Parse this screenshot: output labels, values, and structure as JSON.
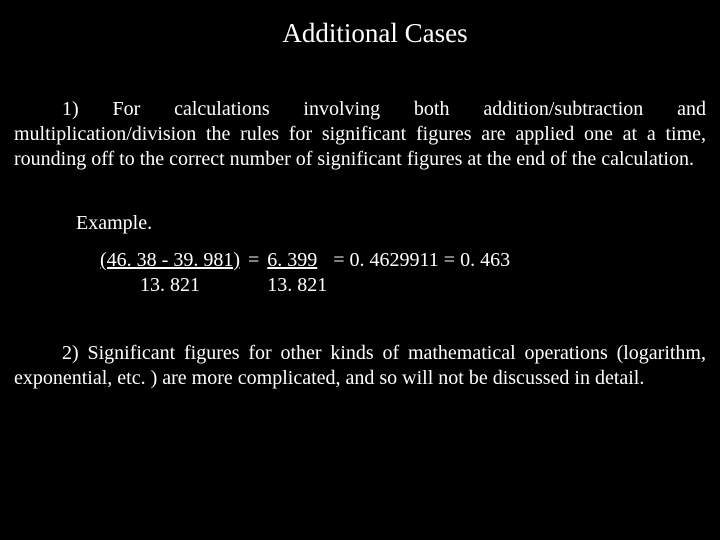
{
  "colors": {
    "background": "#000000",
    "text": "#ffffff"
  },
  "typography": {
    "font_family": "Times New Roman",
    "title_fontsize_pt": 20,
    "body_fontsize_pt": 15
  },
  "title": "Additional Cases",
  "paragraph1": "1) For calculations involving both addition/subtraction and multiplication/division the rules for significant figures are applied one at a time, rounding off to the correct number of significant figures at the end of the calculation.",
  "example_label": "Example.",
  "calculation": {
    "numerator_left": "(46. 38 - 39. 981)",
    "denominator_left": "13. 821",
    "equals1": "=",
    "numerator_right": " 6. 399  ",
    "denominator_right": "13. 821",
    "rest": "= 0. 4629911 = 0. 463"
  },
  "paragraph2": "2) Significant figures for other kinds of mathematical operations (logarithm, exponential, etc. ) are more complicated, and so will not be discussed in detail."
}
